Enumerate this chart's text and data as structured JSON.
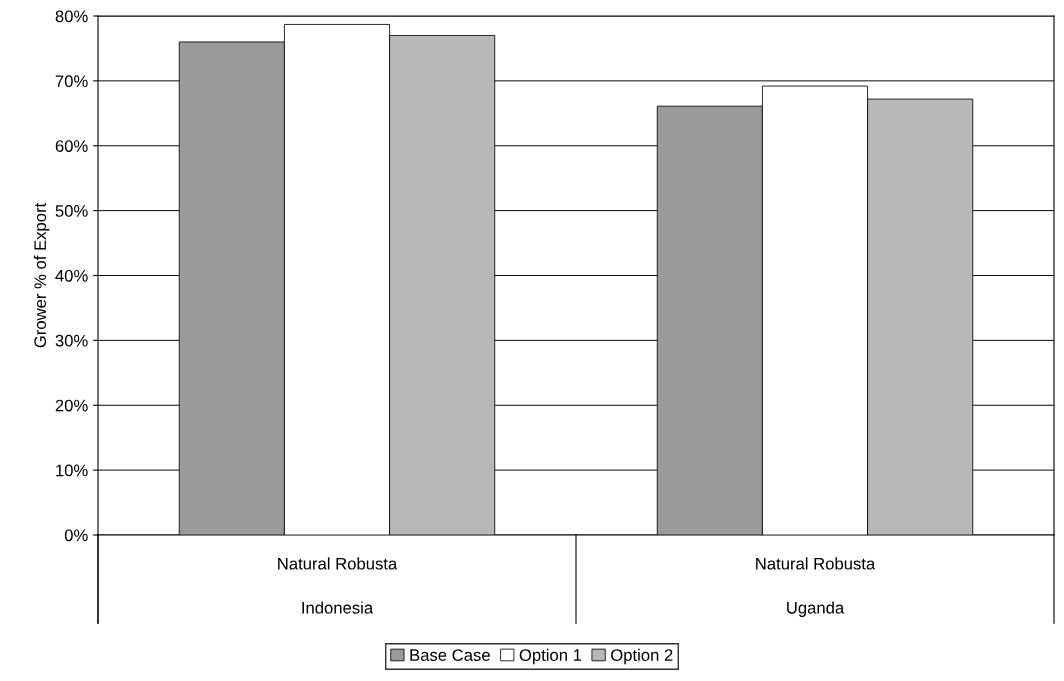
{
  "chart_data": {
    "type": "bar",
    "ylabel": "Grower % of Export",
    "categories": [
      "Natural Robusta\nIndonesia",
      "Natural Robusta\nUganda"
    ],
    "series": [
      {
        "name": "Base Case",
        "color": "#9a9a9a",
        "values": [
          76.0,
          66.1
        ]
      },
      {
        "name": "Option 1",
        "color": "#ffffff",
        "values": [
          78.7,
          69.2
        ]
      },
      {
        "name": "Option 2",
        "color": "#b8b8b8",
        "values": [
          77.0,
          67.2
        ]
      }
    ],
    "ylim": [
      0,
      80
    ],
    "yticks": [
      {
        "value": 0,
        "label": "0%"
      },
      {
        "value": 10,
        "label": "10%"
      },
      {
        "value": 20,
        "label": "20%"
      },
      {
        "value": 30,
        "label": "30%"
      },
      {
        "value": 40,
        "label": "40%"
      },
      {
        "value": 50,
        "label": "50%"
      },
      {
        "value": 60,
        "label": "60%"
      },
      {
        "value": 70,
        "label": "70%"
      },
      {
        "value": 80,
        "label": "80%"
      }
    ],
    "grid": "y",
    "legend": "bottom"
  }
}
